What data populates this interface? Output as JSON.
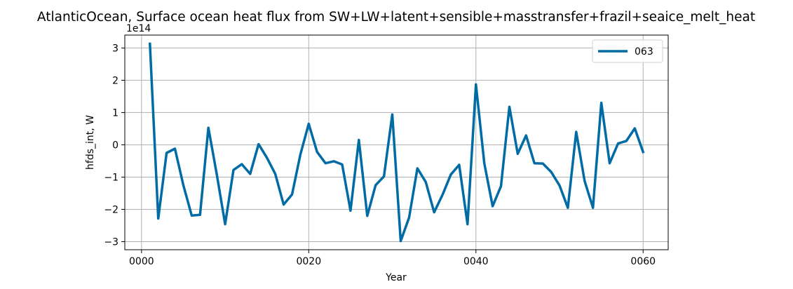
{
  "chart_data": {
    "type": "line",
    "title": "AtlanticOcean, Surface ocean heat flux from SW+LW+latent+sensible+masstransfer+frazil+seaice_melt_heat",
    "xlabel": "Year",
    "ylabel": "hfds_int, W",
    "y_offset_label": "1e14",
    "xlim": [
      -2,
      63
    ],
    "ylim": [
      -3.25,
      3.4
    ],
    "x_ticks": [
      0,
      20,
      40,
      60
    ],
    "x_tick_labels": [
      "0000",
      "0020",
      "0040",
      "0060"
    ],
    "y_ticks": [
      3,
      2,
      1,
      0,
      -1,
      -2,
      -3
    ],
    "y_tick_labels": [
      "3",
      "2",
      "1",
      "0",
      "−1",
      "−2",
      "−3"
    ],
    "grid": true,
    "legend_position": "upper-right",
    "series": [
      {
        "name": "063",
        "color": "#006ba4",
        "x": [
          1,
          2,
          3,
          4,
          5,
          6,
          7,
          8,
          9,
          10,
          11,
          12,
          13,
          14,
          15,
          16,
          17,
          18,
          19,
          20,
          21,
          22,
          23,
          24,
          25,
          26,
          27,
          28,
          29,
          30,
          31,
          32,
          33,
          34,
          35,
          36,
          37,
          38,
          39,
          40,
          41,
          42,
          43,
          44,
          45,
          46,
          47,
          48,
          49,
          50,
          51,
          52,
          53,
          54,
          55,
          56,
          57,
          58,
          59,
          60
        ],
        "y": [
          3.13,
          -2.28,
          -0.25,
          -0.12,
          -1.25,
          -2.19,
          -2.17,
          0.53,
          -0.92,
          -2.46,
          -0.78,
          -0.6,
          -0.9,
          0.02,
          -0.4,
          -0.9,
          -1.85,
          -1.54,
          -0.3,
          0.65,
          -0.22,
          -0.57,
          -0.51,
          -0.61,
          -2.04,
          0.15,
          -2.2,
          -1.25,
          -0.98,
          0.94,
          -2.98,
          -2.26,
          -0.73,
          -1.15,
          -2.09,
          -1.55,
          -0.92,
          -0.62,
          -2.46,
          1.87,
          -0.57,
          -1.9,
          -1.28,
          1.18,
          -0.28,
          0.29,
          -0.57,
          -0.58,
          -0.84,
          -1.26,
          -1.95,
          0.4,
          -1.12,
          -1.95,
          1.3,
          -0.57,
          0.04,
          0.12,
          0.51,
          -0.22
        ]
      }
    ]
  }
}
